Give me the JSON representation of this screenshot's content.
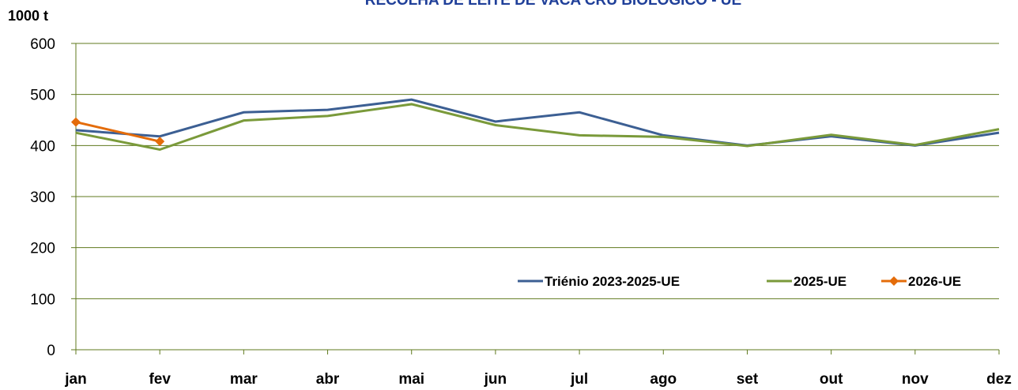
{
  "chart_data": {
    "type": "line",
    "title": "RECOLHA DE LEITE DE VACA CRU BIOLÓGICO - UE",
    "y_label": "1000 t",
    "categories": [
      "jan",
      "fev",
      "mar",
      "abr",
      "mai",
      "jun",
      "jul",
      "ago",
      "set",
      "out",
      "nov",
      "dez"
    ],
    "series": [
      {
        "name": "Triénio 2023-2025-UE",
        "color": "#3c5f93",
        "values": [
          430,
          418,
          465,
          470,
          490,
          447,
          465,
          420,
          400,
          418,
          400,
          425
        ]
      },
      {
        "name": "2025-UE",
        "color": "#7a9a3a",
        "values": [
          425,
          392,
          449,
          458,
          481,
          440,
          420,
          417,
          399,
          421,
          401,
          432
        ]
      },
      {
        "name": "2026-UE",
        "color": "#e46c0a",
        "marker": "diamond",
        "values": [
          446,
          408,
          null,
          null,
          null,
          null,
          null,
          null,
          null,
          null,
          null,
          null
        ]
      }
    ],
    "ylim": [
      0,
      600
    ],
    "yticks": [
      0,
      100,
      200,
      300,
      400,
      500,
      600
    ],
    "grid": true,
    "legend": "lower right"
  }
}
